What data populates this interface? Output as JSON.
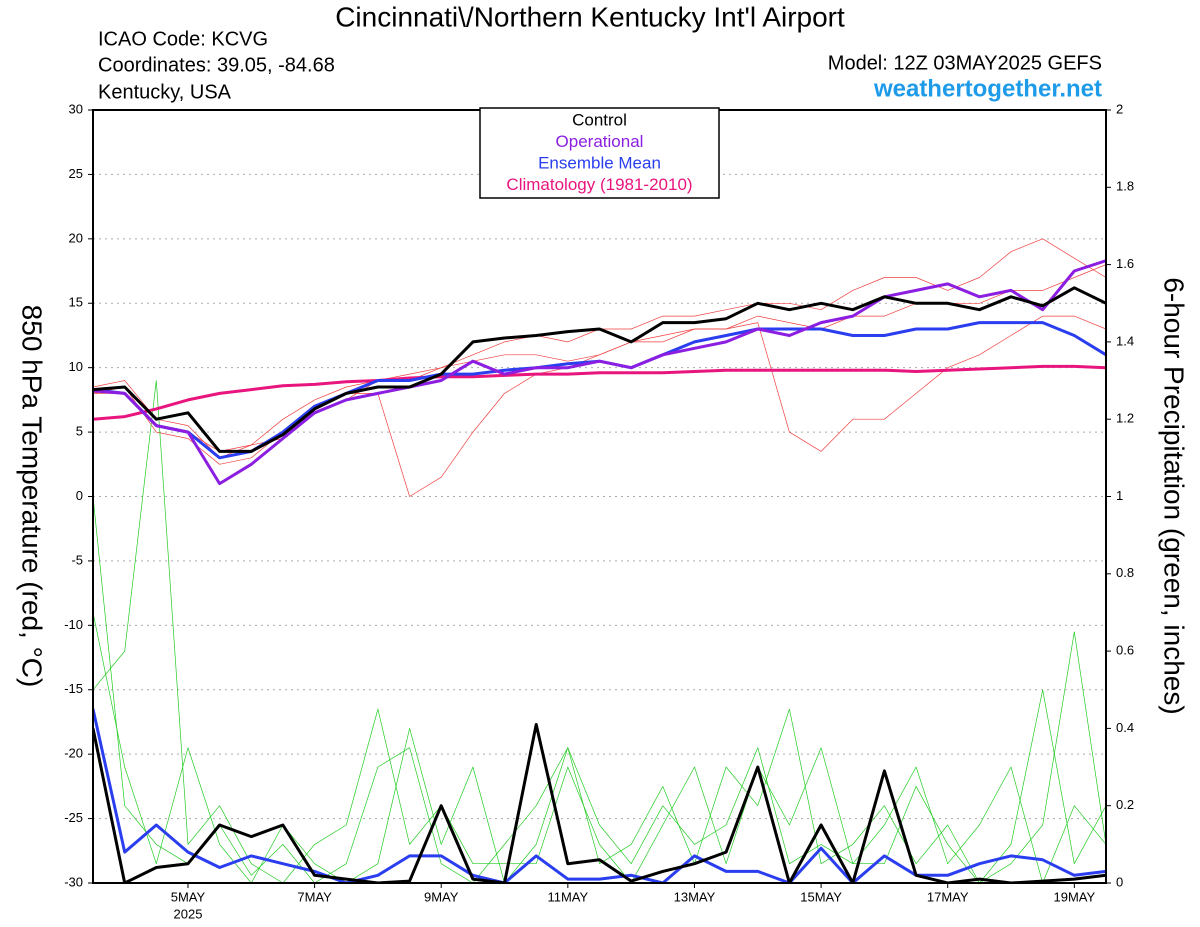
{
  "chart_data": {
    "type": "line",
    "title": "Cincinnati\\/Northern Kentucky Int'l Airport",
    "info": [
      "ICAO Code: KCVG",
      "Coordinates: 39.05, -84.68",
      "Kentucky, USA"
    ],
    "model": "Model: 12Z 03MAY2025 GEFS",
    "source": "weathertogether.net",
    "ylabel": "850 hPa Temperature (red, °C)",
    "y2label": "6-hour Precipitation (green, inches)",
    "x_sublabel": "2025",
    "x": [
      3.5,
      4,
      4.5,
      5,
      5.5,
      6,
      6.5,
      7,
      7.5,
      8,
      8.5,
      9,
      9.5,
      10,
      10.5,
      11,
      11.5,
      12,
      12.5,
      13,
      13.5,
      14,
      14.5,
      15,
      15.5,
      16,
      16.5,
      17,
      17.5,
      18,
      18.5,
      19,
      19.5
    ],
    "xlim": [
      3.5,
      19.5
    ],
    "xticks": [
      {
        "value": 5,
        "label": "5MAY"
      },
      {
        "value": 7,
        "label": "7MAY"
      },
      {
        "value": 9,
        "label": "9MAY"
      },
      {
        "value": 11,
        "label": "11MAY"
      },
      {
        "value": 13,
        "label": "13MAY"
      },
      {
        "value": 15,
        "label": "15MAY"
      },
      {
        "value": 17,
        "label": "17MAY"
      },
      {
        "value": 19,
        "label": "19MAY"
      }
    ],
    "ylim": [
      -30,
      30
    ],
    "yticks": [
      -30,
      -25,
      -20,
      -15,
      -10,
      -5,
      0,
      5,
      10,
      15,
      20,
      25,
      30
    ],
    "y2lim": [
      0,
      2
    ],
    "y2ticks": [
      0,
      0.2,
      0.4,
      0.6,
      0.8,
      1,
      1.2,
      1.4,
      1.6,
      1.8,
      2
    ],
    "grid": true,
    "series": [
      {
        "color": "#f04040",
        "linewidth": 0.7,
        "values": [
          8,
          8.5,
          5,
          4.5,
          2.5,
          3,
          5,
          7,
          8,
          8,
          0,
          1.5,
          5,
          8,
          9.5,
          10,
          11,
          12,
          12.5,
          13,
          13,
          14,
          13.5,
          13,
          14,
          14,
          15,
          15,
          15,
          16,
          16,
          17,
          18
        ]
      },
      {
        "color": "#f04040",
        "linewidth": 0.7,
        "values": [
          8.5,
          9,
          6,
          5.5,
          3,
          4,
          6,
          7.5,
          8.5,
          9,
          9,
          10,
          10.5,
          11,
          11,
          10.5,
          11,
          12,
          12,
          13,
          13,
          13.5,
          5,
          3.5,
          6,
          6,
          8,
          10,
          11,
          12.5,
          14,
          14,
          13
        ]
      },
      {
        "color": "#f04040",
        "linewidth": 0.7,
        "values": [
          8,
          8,
          5.5,
          5,
          3.5,
          4,
          4.5,
          6.5,
          7.5,
          9,
          9.5,
          10,
          11,
          12,
          12.5,
          12,
          13,
          13,
          14,
          14,
          14.5,
          15,
          15,
          14.5,
          16,
          17,
          17,
          16,
          17,
          19,
          20,
          18.5,
          17
        ]
      },
      {
        "color": "#22cc22",
        "linewidth": 0.7,
        "axis": "y2",
        "values": [
          1.0,
          0.2,
          0.1,
          0.05,
          0.15,
          0.02,
          0.1,
          0,
          0.05,
          0.3,
          0.35,
          0.05,
          0,
          0.1,
          0.2,
          0.35,
          0.05,
          0.1,
          0.25,
          0.05,
          0.3,
          0.2,
          0.45,
          0.05,
          0.1,
          0.2,
          0.05,
          0.15,
          0,
          0.1,
          0.5,
          0.05,
          0.2
        ]
      },
      {
        "color": "#22cc22",
        "linewidth": 0.7,
        "axis": "y2",
        "values": [
          0.5,
          0.6,
          1.3,
          0.1,
          0.2,
          0.05,
          0,
          0.1,
          0.15,
          0.45,
          0.1,
          0.2,
          0.05,
          0.05,
          0.05,
          0.3,
          0.1,
          0,
          0.15,
          0.3,
          0.05,
          0.3,
          0.15,
          0.35,
          0.05,
          0.05,
          0.25,
          0.1,
          0,
          0.05,
          0.15,
          0.65,
          0.1
        ]
      },
      {
        "color": "#22cc22",
        "linewidth": 0.7,
        "axis": "y2",
        "values": [
          0.7,
          0.3,
          0.05,
          0.35,
          0.1,
          0,
          0.15,
          0.05,
          0,
          0.05,
          0.4,
          0.1,
          0.3,
          0,
          0.1,
          0.35,
          0.15,
          0.05,
          0.2,
          0.1,
          0.15,
          0.35,
          0.05,
          0.1,
          0.05,
          0.15,
          0.3,
          0.05,
          0.15,
          0.3,
          0,
          0.2,
          0.1
        ]
      },
      {
        "name": "Climatology (1981-2010)",
        "color": "#e8157e",
        "linewidth": 3,
        "values": [
          6,
          6.2,
          6.8,
          7.5,
          8,
          8.3,
          8.6,
          8.7,
          8.9,
          9,
          9.2,
          9.3,
          9.3,
          9.4,
          9.5,
          9.5,
          9.6,
          9.6,
          9.6,
          9.7,
          9.8,
          9.8,
          9.8,
          9.8,
          9.8,
          9.8,
          9.7,
          9.8,
          9.9,
          10,
          10.1,
          10.1,
          10
        ]
      },
      {
        "name": "Ensemble Mean",
        "color": "#2a3ef0",
        "linewidth": 3,
        "values": [
          8.3,
          8,
          5.5,
          5,
          3,
          3.5,
          5,
          7,
          8,
          9,
          9,
          9.5,
          9.5,
          9.8,
          10,
          10.3,
          10.5,
          10,
          11,
          12,
          12.5,
          13,
          13,
          13,
          12.5,
          12.5,
          13,
          13,
          13.5,
          13.5,
          13.5,
          12.5,
          11
        ]
      },
      {
        "color": "#2a3ef0",
        "linewidth": 3,
        "axis": "y2",
        "values": [
          0.45,
          0.08,
          0.15,
          0.08,
          0.04,
          0.07,
          0.05,
          0.03,
          0,
          0.02,
          0.07,
          0.07,
          0.02,
          0,
          0.07,
          0.01,
          0.01,
          0.02,
          0,
          0.07,
          0.03,
          0.03,
          0,
          0.09,
          0,
          0.07,
          0.02,
          0.02,
          0.05,
          0.07,
          0.06,
          0.02,
          0.03
        ]
      },
      {
        "name": "Operational",
        "color": "#8b1ee0",
        "linewidth": 3,
        "values": [
          8.2,
          8,
          5.5,
          5,
          1,
          2.5,
          4.5,
          6.5,
          7.5,
          8,
          8.5,
          9,
          10.5,
          9.5,
          10,
          10,
          10.5,
          10,
          11,
          11.5,
          12,
          13,
          12.5,
          13.5,
          14,
          15.5,
          16,
          16.5,
          15.5,
          16,
          14.5,
          17.5,
          18.3
        ]
      },
      {
        "name": "Control",
        "color": "#000000",
        "linewidth": 3,
        "values": [
          8.3,
          8.5,
          6,
          6.5,
          3.5,
          3.5,
          4.8,
          6.8,
          8,
          8.5,
          8.5,
          9.5,
          12,
          12.3,
          12.5,
          12.8,
          13,
          12,
          13.5,
          13.5,
          13.8,
          15,
          14.5,
          15,
          14.5,
          15.5,
          15,
          15,
          14.5,
          15.5,
          14.8,
          16.2,
          15
        ]
      },
      {
        "color": "#000000",
        "linewidth": 3,
        "axis": "y2",
        "values": [
          0.4,
          0,
          0.04,
          0.05,
          0.15,
          0.12,
          0.15,
          0.02,
          0.01,
          0,
          0.005,
          0.2,
          0.01,
          0,
          0.41,
          0.05,
          0.06,
          0.005,
          0.03,
          0.05,
          0.08,
          0.3,
          0,
          0.15,
          0,
          0.29,
          0.02,
          0,
          0.01,
          0,
          0.005,
          0.01,
          0.02
        ]
      }
    ]
  }
}
